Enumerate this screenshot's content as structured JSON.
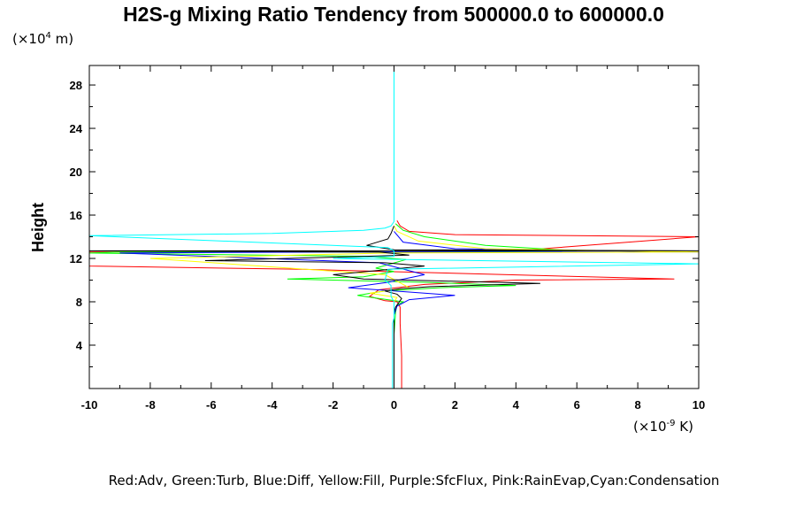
{
  "chart_data": {
    "type": "line",
    "title": "H2S-g Mixing Ratio Tendency from 500000.0 to 600000.0",
    "xlabel": "",
    "ylabel": "Height",
    "x_unit": {
      "prefix": "(×10",
      "exp": "-9",
      "suffix": " K)"
    },
    "y_unit": {
      "prefix": "(×10",
      "exp": "4",
      "suffix": " m)"
    },
    "xlim": [
      -10,
      10
    ],
    "ylim": [
      0,
      29.8
    ],
    "x_ticks": [
      -10,
      -8,
      -6,
      -4,
      -2,
      0,
      2,
      4,
      6,
      8,
      10
    ],
    "x_tick_labels": [
      "-10",
      "-8",
      "-6",
      "-4",
      "-2",
      "0",
      "2",
      "4",
      "6",
      "8",
      "10"
    ],
    "y_ticks": [
      4,
      8,
      12,
      16,
      20,
      24,
      28
    ],
    "y_tick_labels": [
      "4",
      "8",
      "12",
      "16",
      "20",
      "24",
      "28"
    ],
    "grid": false,
    "legend_text": "Red:Adv, Green:Turb, Blue:Diff, Yellow:Fill, Purple:SfcFlux, Pink:RainEvap,Cyan:Condensation",
    "series": [
      {
        "color": "#ff0000",
        "x": [
          0.25,
          0.25,
          0.2,
          0.2,
          0.15,
          0.1,
          -0.3,
          -0.8,
          -0.5,
          1.0,
          4.0,
          9.2,
          -3.0,
          -10.0,
          -10.0,
          0.5,
          4.0,
          10.0,
          2.0,
          0.5,
          0.2,
          0.1
        ],
        "y": [
          0,
          3,
          6,
          7.5,
          7.8,
          8.0,
          8.1,
          8.5,
          9.1,
          9.6,
          10.0,
          10.1,
          11.0,
          11.3,
          12.6,
          12.6,
          12.7,
          14.0,
          14.2,
          14.5,
          15.0,
          15.5
        ]
      },
      {
        "color": "#00ff00",
        "x": [
          0.0,
          0.0,
          0.05,
          0.1,
          0.3,
          -0.5,
          -1.2,
          -0.3,
          1.5,
          4.0,
          1.0,
          -3.5,
          -1.0,
          0.0,
          -0.6,
          -0.1,
          0.4,
          -1.0,
          -10.0,
          -9.0,
          1.0,
          6.0,
          3.0,
          1.0,
          0.3,
          0.05
        ],
        "y": [
          0,
          5,
          7,
          7.7,
          8.0,
          8.3,
          8.6,
          9.0,
          9.3,
          9.5,
          9.8,
          10.1,
          10.3,
          10.8,
          11.1,
          11.5,
          11.9,
          12.2,
          12.5,
          12.6,
          12.6,
          12.7,
          13.2,
          14.0,
          14.6,
          15.2
        ]
      },
      {
        "color": "#0000ff",
        "x": [
          0.0,
          0.0,
          0.1,
          0.5,
          2.0,
          0.0,
          -1.5,
          -0.2,
          1.0,
          -0.5,
          -9.0,
          -2.0,
          10.0,
          2.0,
          0.3,
          0.0
        ],
        "y": [
          0,
          6.8,
          7.6,
          8.2,
          8.6,
          9.0,
          9.3,
          9.8,
          10.5,
          11.6,
          12.5,
          12.6,
          12.6,
          12.9,
          13.5,
          14.5
        ]
      },
      {
        "color": "#ffff00",
        "x": [
          0.0,
          0.0,
          0.1,
          -0.8,
          0.5,
          -0.3,
          -8.0,
          -0.2,
          10.0,
          3.0,
          0.8,
          0.1,
          0.0
        ],
        "y": [
          0,
          8.0,
          8.4,
          8.8,
          9.3,
          10.5,
          12.0,
          12.5,
          12.6,
          12.9,
          13.6,
          14.5,
          15.0
        ]
      },
      {
        "color": "#000000",
        "x": [
          0.0,
          0.0,
          0.05,
          0.15,
          0.25,
          0.1,
          -0.3,
          0.2,
          1.2,
          4.8,
          -1.0,
          -2.0,
          1.0,
          -0.3,
          -6.2,
          0.5,
          -0.5,
          -10.0,
          10.0,
          0.0,
          -0.9,
          -0.2,
          -0.1,
          0.0
        ],
        "y": [
          0,
          7.0,
          7.5,
          7.9,
          8.3,
          8.7,
          9.0,
          9.2,
          9.4,
          9.7,
          10.1,
          10.5,
          11.3,
          11.6,
          11.8,
          12.3,
          12.6,
          12.7,
          12.7,
          12.8,
          13.2,
          13.8,
          14.3,
          15.0
        ]
      },
      {
        "color": "#00ffff",
        "x": [
          -0.05,
          -0.05,
          0.0,
          0.0,
          -0.1,
          -0.1,
          -0.3,
          -0.2,
          10.0,
          -2.0,
          0.0,
          0.0,
          -0.2,
          -10.0,
          -4.0,
          -1.0,
          -0.3,
          -0.1,
          0.0,
          0.0,
          0.0
        ],
        "y": [
          0,
          6.0,
          6.5,
          8.0,
          8.5,
          9.5,
          10.0,
          11.0,
          11.5,
          12.0,
          12.2,
          12.7,
          13.0,
          14.1,
          14.3,
          14.6,
          14.8,
          15.0,
          15.4,
          22.0,
          29.8
        ]
      }
    ]
  }
}
